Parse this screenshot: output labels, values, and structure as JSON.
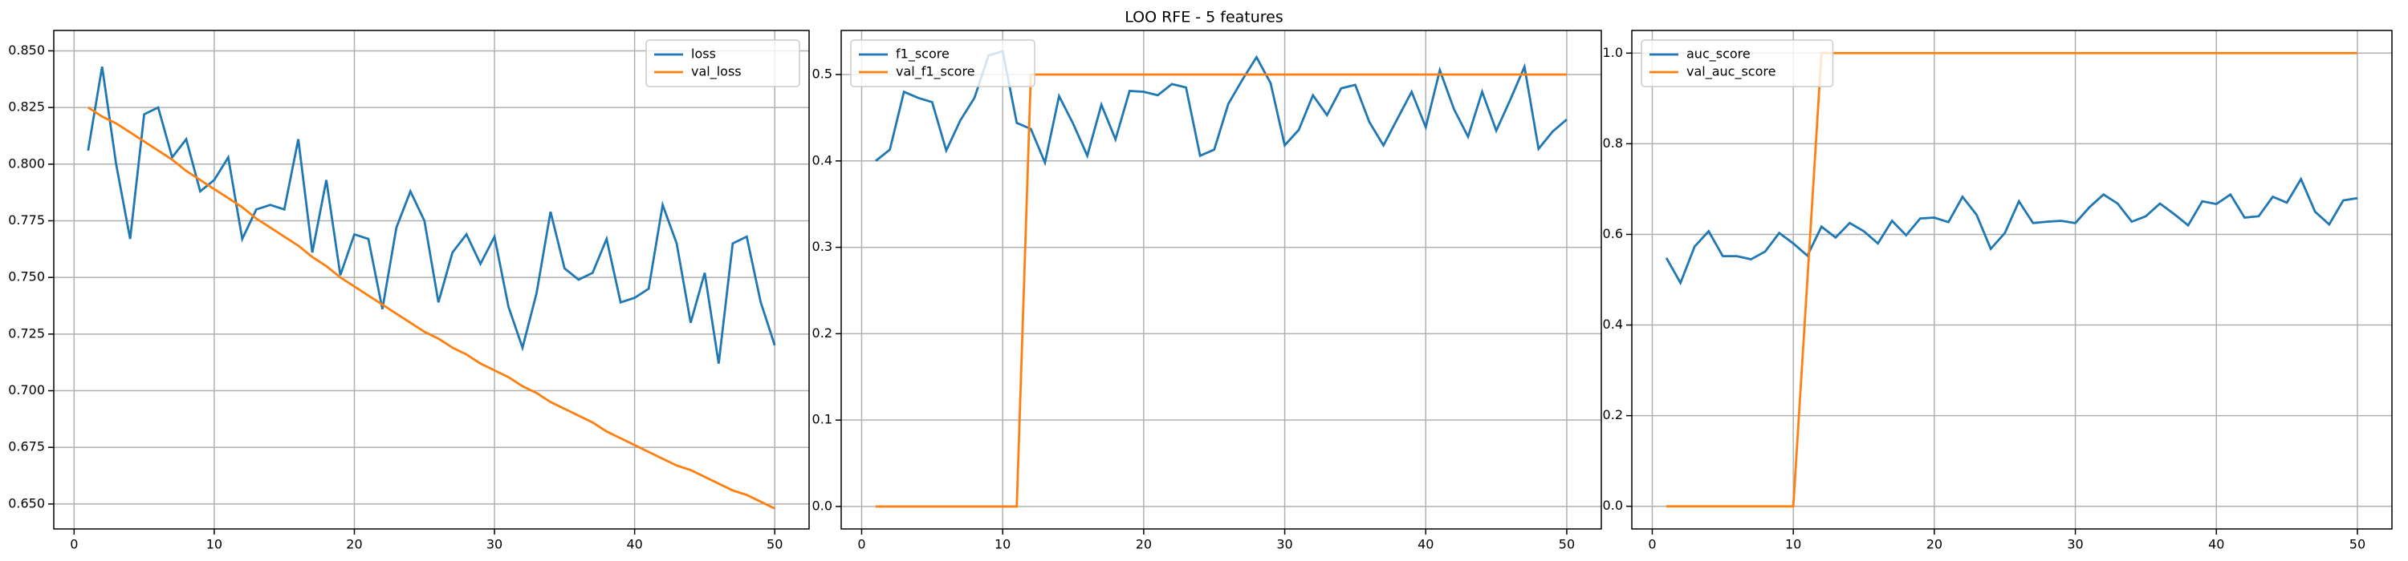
{
  "title": "LOO RFE - 5 features",
  "chart_data": [
    {
      "type": "line",
      "x": [
        1,
        2,
        3,
        4,
        5,
        6,
        7,
        8,
        9,
        10,
        11,
        12,
        13,
        14,
        15,
        16,
        17,
        18,
        19,
        20,
        21,
        22,
        23,
        24,
        25,
        26,
        27,
        28,
        29,
        30,
        31,
        32,
        33,
        34,
        35,
        36,
        37,
        38,
        39,
        40,
        41,
        42,
        43,
        44,
        45,
        46,
        47,
        48,
        49,
        50
      ],
      "series": [
        {
          "name": "loss",
          "color": "#1f77b4",
          "values": [
            0.806,
            0.843,
            0.8,
            0.767,
            0.822,
            0.825,
            0.803,
            0.811,
            0.788,
            0.793,
            0.803,
            0.767,
            0.78,
            0.782,
            0.78,
            0.811,
            0.761,
            0.793,
            0.751,
            0.769,
            0.767,
            0.736,
            0.772,
            0.788,
            0.775,
            0.739,
            0.761,
            0.769,
            0.756,
            0.768,
            0.737,
            0.719,
            0.743,
            0.779,
            0.754,
            0.749,
            0.752,
            0.767,
            0.739,
            0.741,
            0.745,
            0.782,
            0.765,
            0.73,
            0.752,
            0.712,
            0.765,
            0.768,
            0.739,
            0.72
          ]
        },
        {
          "name": "val_loss",
          "color": "#ff7f0e",
          "values": [
            0.825,
            0.821,
            0.818,
            0.814,
            0.81,
            0.806,
            0.802,
            0.797,
            0.793,
            0.789,
            0.785,
            0.781,
            0.776,
            0.772,
            0.768,
            0.764,
            0.759,
            0.755,
            0.75,
            0.746,
            0.742,
            0.738,
            0.734,
            0.73,
            0.726,
            0.723,
            0.719,
            0.716,
            0.712,
            0.709,
            0.706,
            0.702,
            0.699,
            0.695,
            0.692,
            0.689,
            0.686,
            0.682,
            0.679,
            0.676,
            0.673,
            0.67,
            0.667,
            0.665,
            0.662,
            0.659,
            0.656,
            0.654,
            0.651,
            0.648
          ]
        }
      ],
      "xlim": [
        -1.45,
        52.45
      ],
      "xticks": [
        0,
        10,
        20,
        30,
        40,
        50
      ],
      "ylim": [
        0.639,
        0.859
      ],
      "yticks": [
        {
          "value": 0.65,
          "label": "0.650"
        },
        {
          "value": 0.675,
          "label": "0.675"
        },
        {
          "value": 0.7,
          "label": "0.700"
        },
        {
          "value": 0.725,
          "label": "0.725"
        },
        {
          "value": 0.75,
          "label": "0.750"
        },
        {
          "value": 0.775,
          "label": "0.775"
        },
        {
          "value": 0.8,
          "label": "0.800"
        },
        {
          "value": 0.825,
          "label": "0.825"
        },
        {
          "value": 0.85,
          "label": "0.850"
        }
      ],
      "grid": true,
      "legend": "upper right"
    },
    {
      "type": "line",
      "x": [
        1,
        2,
        3,
        4,
        5,
        6,
        7,
        8,
        9,
        10,
        11,
        12,
        13,
        14,
        15,
        16,
        17,
        18,
        19,
        20,
        21,
        22,
        23,
        24,
        25,
        26,
        27,
        28,
        29,
        30,
        31,
        32,
        33,
        34,
        35,
        36,
        37,
        38,
        39,
        40,
        41,
        42,
        43,
        44,
        45,
        46,
        47,
        48,
        49,
        50
      ],
      "series": [
        {
          "name": "f1_score",
          "color": "#1f77b4",
          "values": [
            0.4,
            0.413,
            0.48,
            0.473,
            0.468,
            0.412,
            0.447,
            0.473,
            0.522,
            0.527,
            0.444,
            0.437,
            0.398,
            0.475,
            0.443,
            0.406,
            0.465,
            0.425,
            0.481,
            0.48,
            0.476,
            0.489,
            0.485,
            0.406,
            0.413,
            0.466,
            0.494,
            0.52,
            0.49,
            0.418,
            0.436,
            0.476,
            0.453,
            0.484,
            0.488,
            0.445,
            0.418,
            0.449,
            0.48,
            0.439,
            0.505,
            0.46,
            0.428,
            0.48,
            0.435,
            0.471,
            0.509,
            0.414,
            0.434,
            0.448
          ]
        },
        {
          "name": "val_f1_score",
          "color": "#ff7f0e",
          "values": [
            0,
            0,
            0,
            0,
            0,
            0,
            0,
            0,
            0,
            0,
            0,
            0.5,
            0.5,
            0.5,
            0.5,
            0.5,
            0.5,
            0.5,
            0.5,
            0.5,
            0.5,
            0.5,
            0.5,
            0.5,
            0.5,
            0.5,
            0.5,
            0.5,
            0.5,
            0.5,
            0.5,
            0.5,
            0.5,
            0.5,
            0.5,
            0.5,
            0.5,
            0.5,
            0.5,
            0.5,
            0.5,
            0.5,
            0.5,
            0.5,
            0.5,
            0.5,
            0.5,
            0.5,
            0.5,
            0.5
          ]
        }
      ],
      "xlim": [
        -1.45,
        52.45
      ],
      "xticks": [
        0,
        10,
        20,
        30,
        40,
        50
      ],
      "ylim": [
        -0.026,
        0.551
      ],
      "yticks": [
        {
          "value": 0,
          "label": "0.0"
        },
        {
          "value": 0.1,
          "label": "0.1"
        },
        {
          "value": 0.2,
          "label": "0.2"
        },
        {
          "value": 0.3,
          "label": "0.3"
        },
        {
          "value": 0.4,
          "label": "0.4"
        },
        {
          "value": 0.5,
          "label": "0.5"
        }
      ],
      "grid": true,
      "legend": "upper left"
    },
    {
      "type": "line",
      "x": [
        1,
        2,
        3,
        4,
        5,
        6,
        7,
        8,
        9,
        10,
        11,
        12,
        13,
        14,
        15,
        16,
        17,
        18,
        19,
        20,
        21,
        22,
        23,
        24,
        25,
        26,
        27,
        28,
        29,
        30,
        31,
        32,
        33,
        34,
        35,
        36,
        37,
        38,
        39,
        40,
        41,
        42,
        43,
        44,
        45,
        46,
        47,
        48,
        49,
        50
      ],
      "series": [
        {
          "name": "auc_score",
          "color": "#1f77b4",
          "values": [
            0.548,
            0.493,
            0.573,
            0.607,
            0.552,
            0.552,
            0.545,
            0.562,
            0.603,
            0.58,
            0.553,
            0.617,
            0.593,
            0.625,
            0.607,
            0.58,
            0.63,
            0.598,
            0.635,
            0.637,
            0.627,
            0.683,
            0.643,
            0.568,
            0.603,
            0.673,
            0.625,
            0.628,
            0.63,
            0.625,
            0.66,
            0.688,
            0.668,
            0.628,
            0.64,
            0.668,
            0.645,
            0.62,
            0.673,
            0.667,
            0.688,
            0.637,
            0.64,
            0.683,
            0.67,
            0.722,
            0.65,
            0.622,
            0.675,
            0.68
          ]
        },
        {
          "name": "val_auc_score",
          "color": "#ff7f0e",
          "values": [
            0,
            0,
            0,
            0,
            0,
            0,
            0,
            0,
            0,
            0,
            0.5,
            1,
            1,
            1,
            1,
            1,
            1,
            1,
            1,
            1,
            1,
            1,
            1,
            1,
            1,
            1,
            1,
            1,
            1,
            1,
            1,
            1,
            1,
            1,
            1,
            1,
            1,
            1,
            1,
            1,
            1,
            1,
            1,
            1,
            1,
            1,
            1,
            1,
            1,
            1
          ]
        }
      ],
      "xlim": [
        -1.45,
        52.45
      ],
      "xticks": [
        0,
        10,
        20,
        30,
        40,
        50
      ],
      "ylim": [
        -0.05,
        1.05
      ],
      "yticks": [
        {
          "value": 0,
          "label": "0.0"
        },
        {
          "value": 0.2,
          "label": "0.2"
        },
        {
          "value": 0.4,
          "label": "0.4"
        },
        {
          "value": 0.6,
          "label": "0.6"
        },
        {
          "value": 0.8,
          "label": "0.8"
        },
        {
          "value": 1,
          "label": "1.0"
        }
      ],
      "grid": true,
      "legend": "upper left"
    }
  ]
}
